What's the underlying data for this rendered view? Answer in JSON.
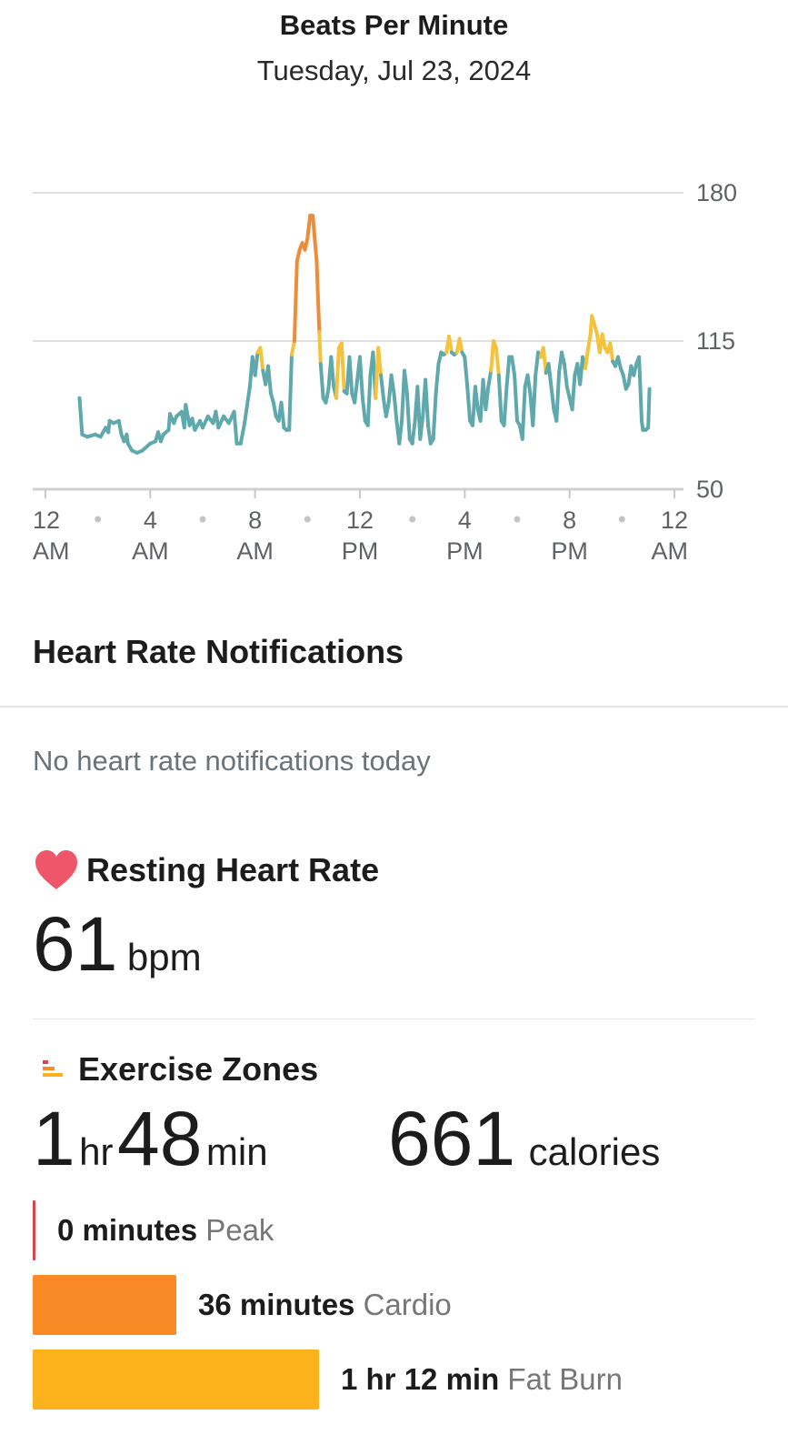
{
  "header": {
    "title": "Beats Per Minute",
    "date": "Tuesday, Jul 23, 2024"
  },
  "chart_data": {
    "type": "line",
    "title": "Beats Per Minute",
    "ylim": [
      50,
      180
    ],
    "y_ticks": [
      "180",
      "115",
      "50"
    ],
    "x_ticks": [
      {
        "top": "12",
        "bottom": "AM"
      },
      {
        "top": "4",
        "bottom": "AM"
      },
      {
        "top": "8",
        "bottom": "AM"
      },
      {
        "top": "12",
        "bottom": "PM"
      },
      {
        "top": "4",
        "bottom": "PM"
      },
      {
        "top": "8",
        "bottom": "PM"
      },
      {
        "top": "12",
        "bottom": "AM"
      }
    ],
    "x_unit": "hour of day",
    "xlim": [
      0,
      24
    ],
    "grid": true,
    "zone_colors": {
      "normal": "#5fa9ad",
      "fat_burn": "#f5c33b",
      "cardio": "#ee8c3a"
    },
    "zone_thresholds": {
      "fat_burn": 111,
      "cardio": 147
    },
    "series": [
      {
        "values": [
          [
            1.3,
            90
          ],
          [
            1.4,
            74
          ],
          [
            1.6,
            73
          ],
          [
            1.9,
            74
          ],
          [
            2.1,
            73
          ],
          [
            2.3,
            77
          ],
          [
            2.4,
            75
          ],
          [
            2.45,
            80
          ],
          [
            2.6,
            79
          ],
          [
            2.8,
            80
          ],
          [
            2.9,
            74
          ],
          [
            3.0,
            71
          ],
          [
            3.1,
            74
          ],
          [
            3.15,
            70
          ],
          [
            3.3,
            67
          ],
          [
            3.5,
            66
          ],
          [
            3.7,
            67
          ],
          [
            3.8,
            68
          ],
          [
            4.0,
            70
          ],
          [
            4.2,
            71
          ],
          [
            4.3,
            75
          ],
          [
            4.4,
            71
          ],
          [
            4.5,
            74
          ],
          [
            4.7,
            76
          ],
          [
            4.75,
            83
          ],
          [
            4.9,
            79
          ],
          [
            5.0,
            82
          ],
          [
            5.2,
            84
          ],
          [
            5.3,
            77
          ],
          [
            5.35,
            87
          ],
          [
            5.5,
            78
          ],
          [
            5.6,
            81
          ],
          [
            5.7,
            76
          ],
          [
            5.9,
            80
          ],
          [
            6.0,
            77
          ],
          [
            6.2,
            82
          ],
          [
            6.4,
            79
          ],
          [
            6.5,
            84
          ],
          [
            6.6,
            77
          ],
          [
            6.8,
            82
          ],
          [
            7.0,
            79
          ],
          [
            7.2,
            84
          ],
          [
            7.3,
            70
          ],
          [
            7.45,
            70
          ],
          [
            7.6,
            79
          ],
          [
            7.8,
            95
          ],
          [
            7.9,
            108
          ],
          [
            8.0,
            100
          ],
          [
            8.1,
            110
          ],
          [
            8.2,
            112
          ],
          [
            8.3,
            102
          ],
          [
            8.4,
            96
          ],
          [
            8.5,
            104
          ],
          [
            8.6,
            92
          ],
          [
            8.7,
            88
          ],
          [
            8.8,
            82
          ],
          [
            8.9,
            80
          ],
          [
            9.0,
            88
          ],
          [
            9.1,
            77
          ],
          [
            9.2,
            76
          ],
          [
            9.3,
            76
          ],
          [
            9.4,
            109
          ],
          [
            9.5,
            115
          ],
          [
            9.6,
            150
          ],
          [
            9.7,
            155
          ],
          [
            9.8,
            158
          ],
          [
            9.9,
            155
          ],
          [
            10.0,
            160
          ],
          [
            10.1,
            170
          ],
          [
            10.2,
            170
          ],
          [
            10.35,
            150
          ],
          [
            10.45,
            119
          ],
          [
            10.5,
            105
          ],
          [
            10.6,
            90
          ],
          [
            10.7,
            88
          ],
          [
            10.8,
            94
          ],
          [
            10.9,
            108
          ],
          [
            11.0,
            95
          ],
          [
            11.1,
            90
          ],
          [
            11.2,
            112
          ],
          [
            11.3,
            114
          ],
          [
            11.4,
            93
          ],
          [
            11.5,
            92
          ],
          [
            11.6,
            108
          ],
          [
            11.7,
            92
          ],
          [
            11.8,
            88
          ],
          [
            11.9,
            98
          ],
          [
            12.0,
            108
          ],
          [
            12.1,
            90
          ],
          [
            12.2,
            80
          ],
          [
            12.3,
            78
          ],
          [
            12.4,
            100
          ],
          [
            12.5,
            110
          ],
          [
            12.6,
            90
          ],
          [
            12.7,
            112
          ],
          [
            12.8,
            100
          ],
          [
            12.9,
            90
          ],
          [
            13.0,
            82
          ],
          [
            13.1,
            88
          ],
          [
            13.2,
            100
          ],
          [
            13.3,
            92
          ],
          [
            13.4,
            80
          ],
          [
            13.5,
            70
          ],
          [
            13.6,
            80
          ],
          [
            13.7,
            102
          ],
          [
            13.8,
            92
          ],
          [
            13.9,
            72
          ],
          [
            14.0,
            70
          ],
          [
            14.1,
            80
          ],
          [
            14.2,
            95
          ],
          [
            14.3,
            72
          ],
          [
            14.4,
            82
          ],
          [
            14.5,
            98
          ],
          [
            14.6,
            78
          ],
          [
            14.7,
            70
          ],
          [
            14.8,
            72
          ],
          [
            14.9,
            92
          ],
          [
            15.0,
            105
          ],
          [
            15.1,
            110
          ],
          [
            15.2,
            109
          ],
          [
            15.3,
            110
          ],
          [
            15.4,
            117
          ],
          [
            15.5,
            110
          ],
          [
            15.6,
            109
          ],
          [
            15.7,
            110
          ],
          [
            15.8,
            116
          ],
          [
            15.9,
            110
          ],
          [
            16.0,
            108
          ],
          [
            16.1,
            95
          ],
          [
            16.2,
            80
          ],
          [
            16.3,
            78
          ],
          [
            16.4,
            95
          ],
          [
            16.5,
            85
          ],
          [
            16.6,
            80
          ],
          [
            16.7,
            98
          ],
          [
            16.8,
            85
          ],
          [
            16.9,
            95
          ],
          [
            17.0,
            102
          ],
          [
            17.1,
            115
          ],
          [
            17.2,
            112
          ],
          [
            17.3,
            100
          ],
          [
            17.4,
            80
          ],
          [
            17.5,
            78
          ],
          [
            17.6,
            95
          ],
          [
            17.7,
            108
          ],
          [
            17.8,
            108
          ],
          [
            17.9,
            100
          ],
          [
            18.0,
            80
          ],
          [
            18.1,
            78
          ],
          [
            18.2,
            72
          ],
          [
            18.3,
            95
          ],
          [
            18.4,
            100
          ],
          [
            18.5,
            92
          ],
          [
            18.6,
            78
          ],
          [
            18.7,
            100
          ],
          [
            18.8,
            110
          ],
          [
            18.9,
            108
          ],
          [
            19.0,
            112
          ],
          [
            19.1,
            101
          ],
          [
            19.2,
            105
          ],
          [
            19.3,
            95
          ],
          [
            19.4,
            85
          ],
          [
            19.5,
            80
          ],
          [
            19.6,
            101
          ],
          [
            19.7,
            110
          ],
          [
            19.8,
            105
          ],
          [
            19.9,
            95
          ],
          [
            20.0,
            90
          ],
          [
            20.1,
            85
          ],
          [
            20.2,
            100
          ],
          [
            20.3,
            105
          ],
          [
            20.4,
            96
          ],
          [
            20.5,
            108
          ],
          [
            20.6,
            103
          ],
          [
            20.7,
            111
          ],
          [
            20.8,
            118
          ],
          [
            20.85,
            126
          ],
          [
            20.95,
            122
          ],
          [
            21.05,
            118
          ],
          [
            21.15,
            110
          ],
          [
            21.25,
            118
          ],
          [
            21.35,
            112
          ],
          [
            21.45,
            110
          ],
          [
            21.55,
            114
          ],
          [
            21.65,
            106
          ],
          [
            21.75,
            104
          ],
          [
            21.85,
            108
          ],
          [
            21.95,
            103
          ],
          [
            22.05,
            100
          ],
          [
            22.15,
            94
          ],
          [
            22.25,
            96
          ],
          [
            22.35,
            104
          ],
          [
            22.45,
            100
          ],
          [
            22.55,
            105
          ],
          [
            22.65,
            108
          ],
          [
            22.7,
            95
          ],
          [
            22.75,
            80
          ],
          [
            22.8,
            76
          ],
          [
            22.9,
            76
          ],
          [
            23.0,
            77
          ],
          [
            23.05,
            94
          ]
        ]
      }
    ]
  },
  "notifications": {
    "title": "Heart Rate Notifications",
    "empty_text": "No heart rate notifications today"
  },
  "resting": {
    "title": "Resting Heart Rate",
    "value": "61",
    "unit": "bpm",
    "icon": "heart-icon",
    "icon_color": "#f0566a"
  },
  "zones": {
    "title": "Exercise Zones",
    "icon": "zones-icon",
    "duration_hr": "1",
    "hr_label": "hr",
    "duration_min": "48",
    "min_label": "min",
    "calories": "661",
    "calories_label": "calories",
    "rows": [
      {
        "minutes_text": "0 minutes",
        "name": "Peak",
        "minutes": 0,
        "color": "#d64550"
      },
      {
        "minutes_text": "36 minutes",
        "name": "Cardio",
        "minutes": 36,
        "color": "#f98a26"
      },
      {
        "minutes_text": "1 hr 12 min",
        "name": "Fat Burn",
        "minutes": 72,
        "color": "#fcb21d"
      }
    ]
  }
}
